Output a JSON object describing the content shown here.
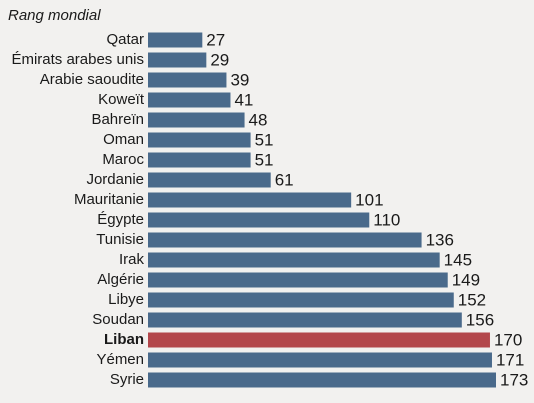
{
  "chart_data": {
    "type": "hbar",
    "title": "Rang mondial",
    "categories": [
      "Qatar",
      "Émirats arabes unis",
      "Arabie saoudite",
      "Koweït",
      "Bahreïn",
      "Oman",
      "Maroc",
      "Jordanie",
      "Mauritanie",
      "Égypte",
      "Tunisie",
      "Irak",
      "Algérie",
      "Libye",
      "Soudan",
      "Liban",
      "Yémen",
      "Syrie"
    ],
    "values": [
      27,
      29,
      39,
      41,
      48,
      51,
      51,
      61,
      101,
      110,
      136,
      145,
      149,
      152,
      156,
      170,
      171,
      173
    ],
    "color": "#4a6a8b",
    "highlight": {
      "index": 15,
      "color": "#b3474b"
    }
  }
}
